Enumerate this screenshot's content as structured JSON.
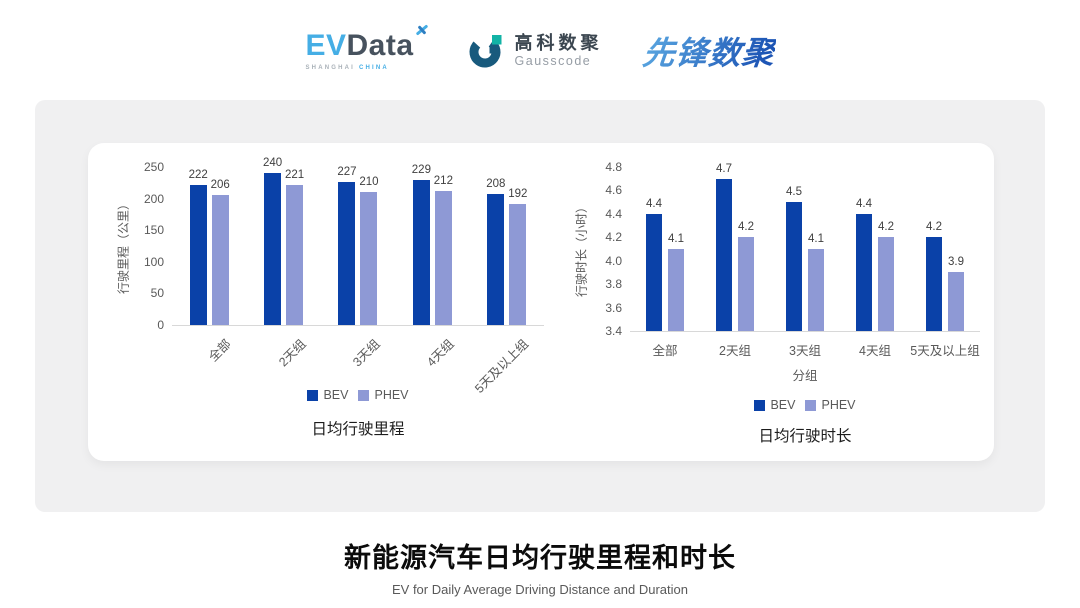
{
  "colors": {
    "bev": "#0a41a8",
    "phev": "#8e99d5",
    "evdata-blue": "#45aee5",
    "evdata-dark": "#47525e",
    "gauss-dark": "#185a7d",
    "gauss-teal": "#12b3a6",
    "pioneer-blue-light": "#55a0dd",
    "pioneer-blue-dark": "#1d55b5",
    "panel-gray": "#f0f0f1",
    "axis-text": "#595959",
    "value-label": "#3f3f3f",
    "baseline": "#d8d8d8"
  },
  "header": {
    "evdata": {
      "ev": "EV",
      "data": "Data",
      "sub_left": "SHANGHAI",
      "sub_right": "CHINA"
    },
    "gausscode": {
      "cn": "高科数聚",
      "en": "Gausscode"
    },
    "pioneer": {
      "text": "先锋数聚"
    }
  },
  "chart_data": [
    {
      "type": "bar",
      "title": "日均行驶里程",
      "ylabel": "行驶里程（公里）",
      "xlabel": "",
      "categories": [
        "全部",
        "2天组",
        "3天组",
        "4天组",
        "5天及以上组"
      ],
      "series": [
        {
          "name": "BEV",
          "color_key": "bev",
          "values": [
            222,
            240,
            227,
            229,
            208
          ]
        },
        {
          "name": "PHEV",
          "color_key": "phev",
          "values": [
            206,
            221,
            210,
            212,
            192
          ]
        }
      ],
      "ylim": [
        0,
        250
      ],
      "yticks": [
        0,
        50,
        100,
        150,
        200,
        250
      ],
      "ytick_labels": [
        "0",
        "50",
        "100",
        "150",
        "200",
        "250"
      ],
      "value_decimals": 0,
      "grid": false,
      "legend_position": "bottom",
      "rotated_xticks": true
    },
    {
      "type": "bar",
      "title": "日均行驶时长",
      "ylabel": "行驶时长（小时）",
      "xlabel": "分组",
      "categories": [
        "全部",
        "2天组",
        "3天组",
        "4天组",
        "5天及以上组"
      ],
      "series": [
        {
          "name": "BEV",
          "color_key": "bev",
          "values": [
            4.4,
            4.7,
            4.5,
            4.4,
            4.2
          ]
        },
        {
          "name": "PHEV",
          "color_key": "phev",
          "values": [
            4.1,
            4.2,
            4.1,
            4.2,
            3.9
          ]
        }
      ],
      "ylim": [
        3.4,
        4.8
      ],
      "yticks": [
        3.4,
        3.6,
        3.8,
        4.0,
        4.2,
        4.4,
        4.6,
        4.8
      ],
      "ytick_labels": [
        "3.4",
        "3.6",
        "3.8",
        "4.0",
        "4.2",
        "4.4",
        "4.6",
        "4.8"
      ],
      "value_decimals": 1,
      "grid": false,
      "legend_position": "bottom",
      "rotated_xticks": false
    }
  ],
  "footer": {
    "title": "新能源汽车日均行驶里程和时长",
    "subtitle": "EV for Daily Average Driving Distance and Duration"
  }
}
